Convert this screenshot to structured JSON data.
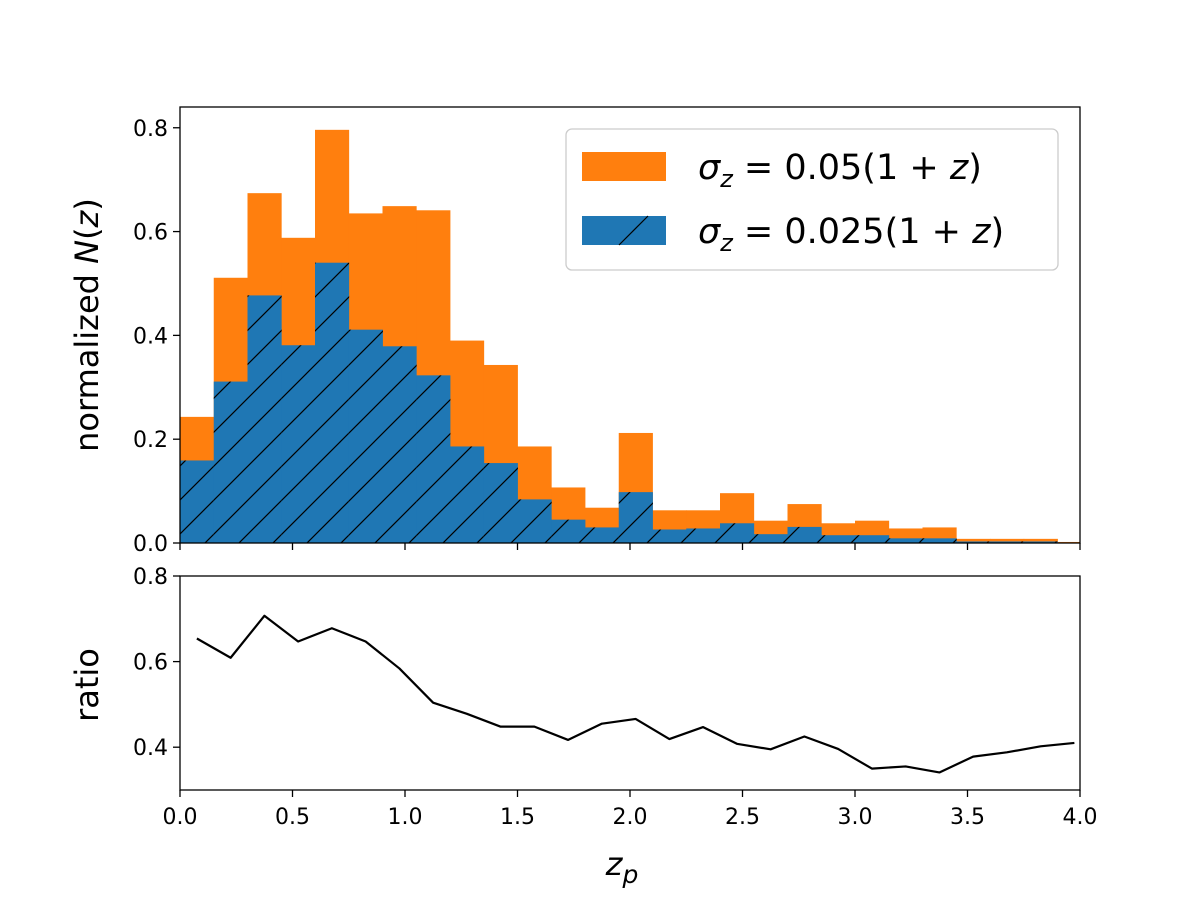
{
  "colors": {
    "orange": "#ff7f0e",
    "blue": "#1f77b4",
    "line": "#000000",
    "hatch": "#000000"
  },
  "chart_data": [
    {
      "type": "bar",
      "panel": "top",
      "bin_edges": [
        0.0,
        0.15,
        0.3,
        0.45,
        0.6,
        0.75,
        0.9,
        1.05,
        1.2,
        1.35,
        1.5,
        1.65,
        1.8,
        1.95,
        2.1,
        2.25,
        2.4,
        2.55,
        2.7,
        2.85,
        3.0,
        3.15,
        3.3,
        3.45,
        3.6,
        3.75,
        3.9,
        4.05
      ],
      "series": [
        {
          "name": "σz = 0.05(1 + z)",
          "name_parts": [
            "σ",
            "z",
            " = 0.05(1 + ",
            "z",
            ")"
          ],
          "color": "#ff7f0e",
          "hatch": false,
          "values": [
            0.243,
            0.511,
            0.674,
            0.588,
            0.796,
            0.635,
            0.649,
            0.641,
            0.39,
            0.343,
            0.186,
            0.107,
            0.068,
            0.212,
            0.063,
            0.063,
            0.096,
            0.043,
            0.075,
            0.038,
            0.043,
            0.028,
            0.03,
            0.008,
            0.008,
            0.008,
            0.002
          ]
        },
        {
          "name": "σz = 0.025(1 + z)",
          "name_parts": [
            "σ",
            "z",
            " = 0.025(1 + ",
            "z",
            ")"
          ],
          "color": "#1f77b4",
          "hatch": true,
          "values": [
            0.159,
            0.311,
            0.477,
            0.381,
            0.54,
            0.411,
            0.379,
            0.323,
            0.186,
            0.154,
            0.084,
            0.045,
            0.03,
            0.098,
            0.026,
            0.028,
            0.038,
            0.017,
            0.031,
            0.015,
            0.015,
            0.009,
            0.009,
            0.003,
            0.003,
            0.003,
            0.001
          ]
        }
      ],
      "ylabel": "normalized N(z)",
      "ylabel_parts": [
        "normalized ",
        "N",
        "(",
        "z",
        ")"
      ],
      "xlim": [
        0.0,
        4.0
      ],
      "ylim": [
        0.0,
        0.84
      ],
      "yticks": [
        0.0,
        0.2,
        0.4,
        0.6,
        0.8
      ],
      "ytick_labels": [
        "0.0",
        "0.2",
        "0.4",
        "0.6",
        "0.8"
      ],
      "legend_placement": "top-right",
      "grid": false
    },
    {
      "type": "line",
      "panel": "bottom",
      "x": [
        0.075,
        0.225,
        0.375,
        0.525,
        0.675,
        0.825,
        0.975,
        1.125,
        1.275,
        1.425,
        1.575,
        1.725,
        1.875,
        2.025,
        2.175,
        2.325,
        2.475,
        2.625,
        2.775,
        2.925,
        3.075,
        3.225,
        3.375,
        3.525,
        3.675,
        3.825,
        3.975
      ],
      "series": [
        {
          "color": "#000000",
          "values": [
            0.654,
            0.609,
            0.707,
            0.647,
            0.678,
            0.647,
            0.584,
            0.504,
            0.478,
            0.448,
            0.448,
            0.417,
            0.455,
            0.466,
            0.419,
            0.447,
            0.408,
            0.395,
            0.425,
            0.396,
            0.35,
            0.355,
            0.341,
            0.378,
            0.388,
            0.402,
            0.41
          ]
        }
      ],
      "xlabel": "zp",
      "xlabel_parts": [
        "z",
        "p"
      ],
      "ylabel": "ratio",
      "xlim": [
        0.0,
        4.0
      ],
      "ylim": [
        0.3,
        0.8
      ],
      "xticks": [
        0.0,
        0.5,
        1.0,
        1.5,
        2.0,
        2.5,
        3.0,
        3.5,
        4.0
      ],
      "xtick_labels": [
        "0.0",
        "0.5",
        "1.0",
        "1.5",
        "2.0",
        "2.5",
        "3.0",
        "3.5",
        "4.0"
      ],
      "yticks": [
        0.4,
        0.6,
        0.8
      ],
      "ytick_labels": [
        "0.4",
        "0.6",
        "0.8"
      ],
      "grid": false
    }
  ]
}
